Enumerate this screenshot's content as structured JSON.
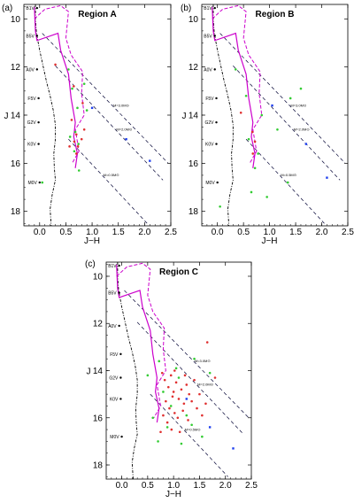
{
  "chart_data": [
    {
      "type": "scatter",
      "panel_letter": "(a)",
      "title": "Region A",
      "xlabel": "J−H",
      "ylabel": "J",
      "xlim": [
        -0.3,
        2.5
      ],
      "ylim": [
        18.6,
        9.4
      ],
      "xticks": [
        0.0,
        0.5,
        1.0,
        1.5,
        2.0,
        2.5
      ],
      "xtick_labels": [
        "0.0",
        "0.5",
        "1.0",
        "1.5",
        "2.0",
        "2.5"
      ],
      "yticks": [
        10,
        12,
        14,
        16,
        18
      ],
      "ytick_labels": [
        "10",
        "12",
        "14",
        "16",
        "18"
      ],
      "green_points": [
        [
          0.55,
          12.1
        ],
        [
          0.62,
          12.9
        ],
        [
          0.72,
          13.7
        ],
        [
          0.68,
          14.7
        ],
        [
          0.66,
          15.5
        ],
        [
          0.74,
          15.2
        ],
        [
          0.58,
          14.9
        ],
        [
          0.75,
          16.3
        ],
        [
          0.05,
          16.8
        ],
        [
          0.9,
          13.8
        ],
        [
          0.85,
          12.7
        ]
      ],
      "red_points": [
        [
          0.3,
          11.9
        ],
        [
          0.65,
          12.8
        ],
        [
          0.82,
          13.5
        ],
        [
          0.61,
          14.2
        ],
        [
          0.66,
          15.1
        ],
        [
          0.7,
          14.8
        ],
        [
          0.73,
          15.3
        ],
        [
          0.57,
          15.3
        ],
        [
          0.8,
          15.0
        ],
        [
          0.7,
          15.6
        ],
        [
          0.85,
          14.6
        ]
      ],
      "blue_points": [
        [
          1.0,
          13.7
        ],
        [
          1.65,
          15.0
        ],
        [
          2.1,
          15.9
        ]
      ]
    },
    {
      "type": "scatter",
      "panel_letter": "(b)",
      "title": "Region B",
      "xlabel": "J−H",
      "ylabel": "J",
      "xlim": [
        -0.3,
        2.5
      ],
      "ylim": [
        18.6,
        9.4
      ],
      "xticks": [
        0.0,
        0.5,
        1.0,
        1.5,
        2.0,
        2.5
      ],
      "xtick_labels": [
        "0.0",
        "0.5",
        "1.0",
        "1.5",
        "2.0",
        "2.5"
      ],
      "yticks": [
        10,
        12,
        14,
        16,
        18
      ],
      "ytick_labels": [
        "10",
        "12",
        "14",
        "16",
        "18"
      ],
      "green_points": [
        [
          0.35,
          12.1
        ],
        [
          0.55,
          13.2
        ],
        [
          0.6,
          15.0
        ],
        [
          0.72,
          16.2
        ],
        [
          0.65,
          17.2
        ],
        [
          0.95,
          17.4
        ],
        [
          1.35,
          16.8
        ],
        [
          1.4,
          13.3
        ],
        [
          1.15,
          14.6
        ],
        [
          0.05,
          17.8
        ],
        [
          0.78,
          15.6
        ],
        [
          0.85,
          14.0
        ],
        [
          1.6,
          12.9
        ]
      ],
      "red_points": [
        [
          0.45,
          13.9
        ],
        [
          0.67,
          14.7
        ],
        [
          0.72,
          15.1
        ],
        [
          0.68,
          15.6
        ]
      ],
      "blue_points": [
        [
          1.05,
          13.6
        ],
        [
          1.7,
          15.2
        ],
        [
          2.1,
          16.6
        ]
      ]
    },
    {
      "type": "scatter",
      "panel_letter": "(c)",
      "title": "Region C",
      "xlabel": "J−H",
      "ylabel": "J",
      "xlim": [
        -0.3,
        2.5
      ],
      "ylim": [
        18.6,
        9.4
      ],
      "xticks": [
        0.0,
        0.5,
        1.0,
        1.5,
        2.0,
        2.5
      ],
      "xtick_labels": [
        "0.0",
        "0.5",
        "1.0",
        "1.5",
        "2.0",
        "2.5"
      ],
      "yticks": [
        10,
        12,
        14,
        16,
        18
      ],
      "ytick_labels": [
        "10",
        "12",
        "14",
        "16",
        "18"
      ],
      "green_points": [
        [
          0.5,
          14.2
        ],
        [
          0.72,
          13.6
        ],
        [
          0.8,
          14.9
        ],
        [
          0.95,
          15.5
        ],
        [
          1.1,
          14.3
        ],
        [
          1.25,
          15.9
        ],
        [
          1.4,
          13.5
        ],
        [
          1.55,
          16.8
        ],
        [
          0.6,
          16.0
        ],
        [
          0.88,
          16.4
        ],
        [
          1.15,
          17.1
        ],
        [
          1.7,
          14.1
        ],
        [
          0.7,
          17.0
        ],
        [
          1.05,
          13.9
        ],
        [
          1.35,
          16.3
        ]
      ],
      "red_points": [
        [
          0.78,
          14.1
        ],
        [
          0.83,
          14.4
        ],
        [
          0.9,
          14.7
        ],
        [
          0.95,
          14.2
        ],
        [
          1.0,
          14.9
        ],
        [
          1.05,
          14.5
        ],
        [
          1.1,
          15.2
        ],
        [
          1.15,
          14.8
        ],
        [
          1.2,
          15.4
        ],
        [
          1.25,
          14.6
        ],
        [
          1.3,
          15.0
        ],
        [
          0.85,
          15.3
        ],
        [
          0.92,
          15.6
        ],
        [
          0.98,
          15.1
        ],
        [
          1.02,
          15.8
        ],
        [
          1.08,
          16.0
        ],
        [
          1.18,
          15.7
        ],
        [
          1.28,
          16.1
        ],
        [
          1.35,
          15.3
        ],
        [
          1.45,
          15.6
        ],
        [
          1.5,
          15.0
        ],
        [
          1.55,
          15.9
        ],
        [
          0.8,
          15.9
        ],
        [
          0.88,
          16.2
        ],
        [
          0.96,
          16.5
        ],
        [
          1.12,
          16.6
        ],
        [
          1.4,
          14.4
        ],
        [
          1.62,
          15.4
        ],
        [
          1.02,
          14.0
        ],
        [
          1.22,
          14.2
        ],
        [
          0.75,
          16.6
        ],
        [
          1.65,
          12.8
        ],
        [
          1.8,
          14.3
        ]
      ],
      "blue_points": [
        [
          1.25,
          15.2
        ],
        [
          1.7,
          16.4
        ],
        [
          2.15,
          17.3
        ]
      ]
    }
  ],
  "spectral_types": [
    "B1V",
    "B5V",
    "A0V",
    "F5V",
    "G2V",
    "K0V",
    "M0V"
  ],
  "reddening_labels": [
    "M=3.0M⊙",
    "M=2.0M⊙",
    "M=0.5M⊙"
  ],
  "colors": {
    "main_sequence": "#000000",
    "isochrone_solid": "#cc00cc",
    "isochrone_dashed": "#cc00cc",
    "reddening_vector": "#000033",
    "green_points": "#33cc33",
    "red_points": "#e03030",
    "blue_points": "#2040ee"
  }
}
